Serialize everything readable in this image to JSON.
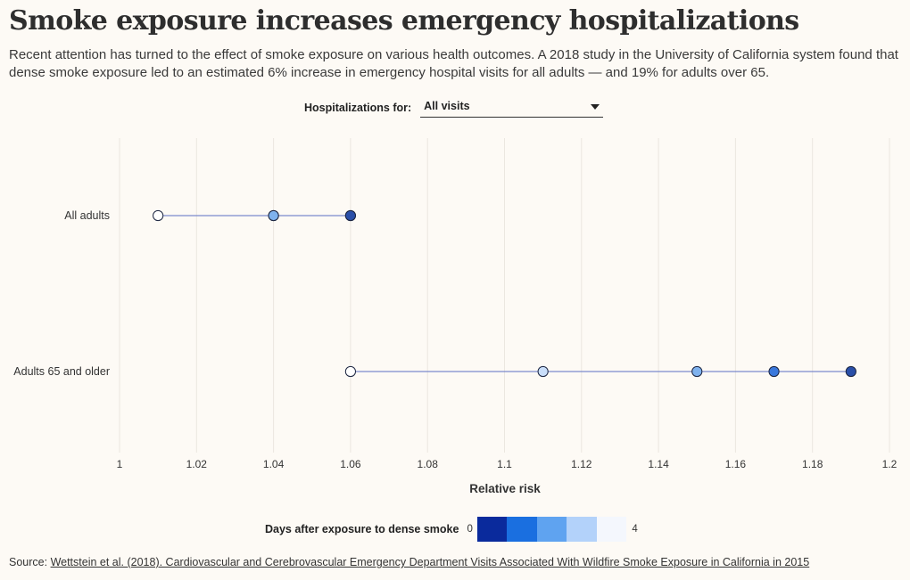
{
  "header": {
    "title": "Smoke exposure increases emergency hospitalizations",
    "subtitle": "Recent attention has turned to the effect of smoke exposure on various health outcomes. A 2018 study in the University of California system found that dense smoke exposure led to an estimated 6% increase in emergency hospital visits for all adults — and 19% for adults over 65."
  },
  "filter": {
    "label": "Hospitalizations for:",
    "selected": "All visits"
  },
  "chart_data": {
    "type": "dot",
    "xlabel": "Relative risk",
    "xlim": [
      1,
      1.2
    ],
    "xticks": [
      1,
      1.02,
      1.04,
      1.06,
      1.08,
      1.1,
      1.12,
      1.14,
      1.16,
      1.18,
      1.2
    ],
    "xtick_labels": [
      "1",
      "1.02",
      "1.04",
      "1.06",
      "1.08",
      "1.1",
      "1.12",
      "1.14",
      "1.16",
      "1.18",
      "1.2"
    ],
    "grid": "vertical",
    "series": [
      {
        "name": "All adults",
        "points": [
          {
            "day": 4,
            "value": 1.01
          },
          {
            "day": 3,
            "value": 1.04
          },
          {
            "day": 2,
            "value": 1.04
          },
          {
            "day": 1,
            "value": 1.06
          },
          {
            "day": 0,
            "value": 1.06
          }
        ]
      },
      {
        "name": "Adults 65 and older",
        "points": [
          {
            "day": 4,
            "value": 1.06
          },
          {
            "day": 3,
            "value": 1.11
          },
          {
            "day": 2,
            "value": 1.15
          },
          {
            "day": 1,
            "value": 1.17
          },
          {
            "day": 0,
            "value": 1.19
          }
        ]
      }
    ],
    "day_colors": [
      "#0a2a9c",
      "#1a6fe0",
      "#5fa3f0",
      "#b3d2fa",
      "#f4f7fd"
    ],
    "marker_colors": [
      "#2a4fa8",
      "#3a78dc",
      "#7fb2ee",
      "#c9defa",
      "#ffffff"
    ],
    "line_color": "#5b6fc4",
    "legend": {
      "title": "Days after exposure to dense smoke",
      "min_label": "0",
      "max_label": "4"
    }
  },
  "source": {
    "prefix": "Source: ",
    "link_text": "Wettstein et al. (2018). Cardiovascular and Cerebrovascular Emergency Department Visits Associated With Wildfire Smoke Exposure in California in 2015"
  }
}
